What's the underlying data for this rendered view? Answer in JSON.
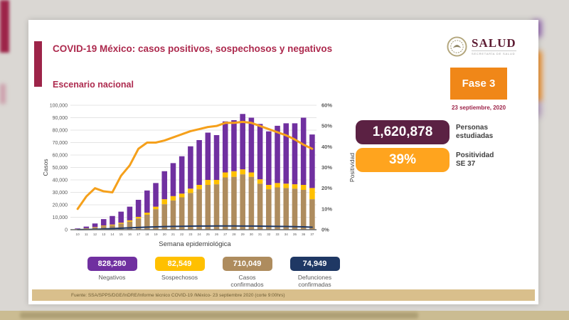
{
  "header": {
    "title": "COVID-19 México: casos positivos, sospechosos y negativos",
    "subtitle": "Escenario nacional"
  },
  "logo": {
    "name": "SALUD",
    "tagline": "SECRETARÍA DE SALUD"
  },
  "phase": {
    "label": "Fase 3",
    "date": "23 septiembre, 2020"
  },
  "stats": [
    {
      "value": "1,620,878",
      "label": "Personas\nestudiadas",
      "color": "#5b2143"
    },
    {
      "value": "39%",
      "label": "Positividad\nSE 37",
      "color": "#ffa41e"
    }
  ],
  "chart_data": {
    "type": "bar",
    "subtype": "stacked bars with two overlay lines",
    "title": "",
    "xlabel": "Semana epidemiológica",
    "ylabel": "Casos",
    "y2label": "Positividad",
    "ylim": [
      0,
      100000
    ],
    "y2lim": [
      0,
      60
    ],
    "grid": true,
    "yticks": [
      "0",
      "10,000",
      "20,000",
      "30,000",
      "40,000",
      "50,000",
      "60,000",
      "70,000",
      "80,000",
      "90,000",
      "100,000"
    ],
    "y2ticks": [
      "0%",
      "10%",
      "20%",
      "30%",
      "40%",
      "50%",
      "60%"
    ],
    "categories": [
      "10",
      "11",
      "12",
      "13",
      "14",
      "15",
      "16",
      "17",
      "18",
      "19",
      "20",
      "21",
      "22",
      "23",
      "24",
      "25",
      "26",
      "27",
      "28",
      "29",
      "30",
      "31",
      "32",
      "33",
      "34",
      "35",
      "36",
      "37"
    ],
    "series": [
      {
        "name": "Casos confirmados",
        "type": "bar-stack",
        "axis": "left",
        "color": "#ae8c5e",
        "values": [
          400,
          1000,
          1800,
          2800,
          3500,
          4800,
          6500,
          9000,
          12000,
          16500,
          20500,
          23500,
          26000,
          29500,
          32500,
          36000,
          36500,
          42000,
          42500,
          44500,
          42500,
          37000,
          32500,
          34000,
          33500,
          33000,
          32000,
          24500
        ]
      },
      {
        "name": "Sospechosos",
        "type": "bar-stack",
        "axis": "left",
        "color": "#ffc000",
        "values": [
          100,
          200,
          300,
          500,
          600,
          800,
          1000,
          1300,
          1700,
          2000,
          4000,
          3500,
          3000,
          3500,
          3500,
          4000,
          3500,
          4000,
          4500,
          4000,
          3500,
          3500,
          3500,
          3500,
          3500,
          3500,
          4000,
          9000
        ]
      },
      {
        "name": "Negativos",
        "type": "bar-stack",
        "axis": "left",
        "color": "#7030a0",
        "values": [
          500,
          1300,
          2900,
          5200,
          6900,
          8900,
          11000,
          13700,
          17800,
          19000,
          22500,
          26500,
          30000,
          34000,
          36000,
          38000,
          36000,
          41000,
          41000,
          44500,
          44000,
          44500,
          43000,
          46000,
          48500,
          49000,
          54000,
          43000
        ]
      },
      {
        "name": "Defunciones confirmadas",
        "type": "line",
        "axis": "left",
        "color": "#1f3864",
        "values": [
          50,
          150,
          300,
          600,
          900,
          1200,
          1500,
          1800,
          2100,
          2300,
          2500,
          2650,
          2750,
          2850,
          2900,
          2950,
          3000,
          3000,
          3000,
          2950,
          2900,
          2850,
          2750,
          2650,
          2550,
          2450,
          2300,
          2000
        ]
      },
      {
        "name": "Positividad (%)",
        "type": "line",
        "axis": "right",
        "color": "#f5a01b",
        "values": [
          10,
          16,
          20,
          18.5,
          18,
          26,
          31,
          39,
          42,
          42,
          43,
          44.5,
          46,
          47.5,
          48.5,
          49.5,
          50,
          51.5,
          51.5,
          52,
          51.5,
          50,
          48.5,
          47,
          45.5,
          43.5,
          41,
          39
        ]
      }
    ],
    "legend_position": "bottom"
  },
  "legend": [
    {
      "value": "828,280",
      "label": "Negativos",
      "color": "#7030a0"
    },
    {
      "value": "82,549",
      "label": "Sospechosos",
      "color": "#ffc000"
    },
    {
      "value": "710,049",
      "label": "Casos\nconfirmados",
      "color": "#ae8c5e"
    },
    {
      "value": "74,949",
      "label": "Defunciones\nconfirmadas",
      "color": "#1f3864"
    }
  ],
  "footer": {
    "source": "Fuente: SSA/SPPS/DGE/InDRE/Informe técnico COVID-19 /México- 23 septiembre 2020 (corte 9:00hrs)"
  }
}
